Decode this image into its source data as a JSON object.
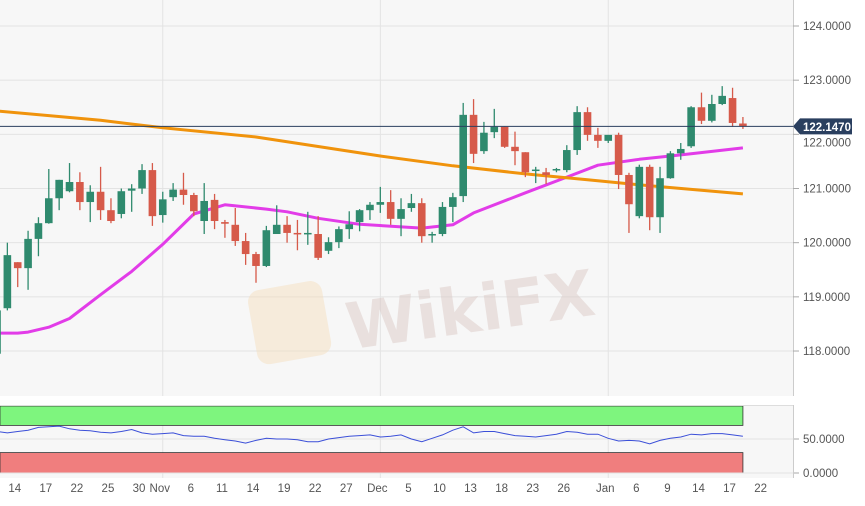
{
  "chart_data": {
    "type": "candlestick",
    "title": "",
    "watermark": "WikiFX",
    "colors": {
      "up": "#2f8a6e",
      "down": "#d65a4a",
      "ma_fast": "#e23ce8",
      "ma_slow": "#f0930c",
      "last_price": "#2a3f5f",
      "overbought_band": "#7ef57e",
      "oversold_band": "#f07e7e",
      "oscillator": "#3b4fd8"
    },
    "y_axis": {
      "range": [
        117.4,
        124.5
      ],
      "ticks": [
        "118.0000",
        "119.0000",
        "120.0000",
        "121.0000",
        "122.0000",
        "123.0000",
        "124.0000"
      ],
      "grid": true
    },
    "last_price": {
      "value": 122.147,
      "label": "122.1470"
    },
    "x_ticks": [
      {
        "date": "2019-10-14",
        "label": "14"
      },
      {
        "date": "2019-10-17",
        "label": "17"
      },
      {
        "date": "2019-10-22",
        "label": "22"
      },
      {
        "date": "2019-10-25",
        "label": "25"
      },
      {
        "date": "2019-10-30",
        "label": "30"
      },
      {
        "date": "2019-11-01",
        "label": "Nov",
        "month": true
      },
      {
        "date": "2019-11-06",
        "label": "6"
      },
      {
        "date": "2019-11-11",
        "label": "11"
      },
      {
        "date": "2019-11-14",
        "label": "14"
      },
      {
        "date": "2019-11-19",
        "label": "19"
      },
      {
        "date": "2019-11-22",
        "label": "22"
      },
      {
        "date": "2019-11-27",
        "label": "27"
      },
      {
        "date": "2019-12-02",
        "label": "Dec",
        "month": true
      },
      {
        "date": "2019-12-05",
        "label": "5"
      },
      {
        "date": "2019-12-10",
        "label": "10"
      },
      {
        "date": "2019-12-13",
        "label": "13"
      },
      {
        "date": "2019-12-18",
        "label": "18"
      },
      {
        "date": "2019-12-23",
        "label": "23"
      },
      {
        "date": "2019-12-26",
        "label": "26"
      },
      {
        "date": "2020-01-01",
        "label": "Jan",
        "month": true
      },
      {
        "date": "2020-01-06",
        "label": "6"
      },
      {
        "date": "2020-01-09",
        "label": "9"
      },
      {
        "date": "2020-01-14",
        "label": "14"
      },
      {
        "date": "2020-01-17",
        "label": "17"
      },
      {
        "date": "2020-01-22",
        "label": "22"
      }
    ],
    "candles_format": [
      "date",
      "open",
      "high",
      "low",
      "close"
    ],
    "candles": [
      [
        "2019-10-10",
        117.95,
        118.79,
        117.8,
        118.75
      ],
      [
        "2019-10-11",
        118.79,
        120.0,
        118.75,
        119.77
      ],
      [
        "2019-10-14",
        119.64,
        119.64,
        119.18,
        119.53
      ],
      [
        "2019-10-15",
        119.53,
        120.22,
        119.13,
        120.07
      ],
      [
        "2019-10-16",
        120.07,
        120.47,
        119.75,
        120.36
      ],
      [
        "2019-10-17",
        120.36,
        121.36,
        120.35,
        120.82
      ],
      [
        "2019-10-18",
        120.82,
        121.16,
        120.6,
        121.16
      ],
      [
        "2019-10-21",
        120.95,
        121.47,
        120.93,
        121.12
      ],
      [
        "2019-10-22",
        121.12,
        121.3,
        120.6,
        120.75
      ],
      [
        "2019-10-23",
        120.75,
        121.06,
        120.38,
        120.94
      ],
      [
        "2019-10-24",
        120.94,
        121.4,
        120.42,
        120.6
      ],
      [
        "2019-10-25",
        120.6,
        120.82,
        120.36,
        120.4
      ],
      [
        "2019-10-28",
        120.53,
        121.0,
        120.45,
        120.95
      ],
      [
        "2019-10-29",
        120.96,
        121.08,
        120.57,
        121.0
      ],
      [
        "2019-10-30",
        121.0,
        121.45,
        120.9,
        121.34
      ],
      [
        "2019-10-31",
        121.34,
        121.47,
        120.31,
        120.49
      ],
      [
        "2019-11-01",
        120.51,
        120.94,
        120.37,
        120.8
      ],
      [
        "2019-11-04",
        120.84,
        121.1,
        120.77,
        120.98
      ],
      [
        "2019-11-05",
        120.98,
        121.29,
        120.7,
        120.88
      ],
      [
        "2019-11-06",
        120.88,
        120.92,
        120.49,
        120.58
      ],
      [
        "2019-11-07",
        120.4,
        121.1,
        120.16,
        120.77
      ],
      [
        "2019-11-08",
        120.79,
        120.9,
        120.25,
        120.4
      ],
      [
        "2019-11-11",
        120.38,
        120.42,
        120.09,
        120.35
      ],
      [
        "2019-11-12",
        120.33,
        120.64,
        119.94,
        120.03
      ],
      [
        "2019-11-13",
        120.03,
        120.18,
        119.59,
        119.79
      ],
      [
        "2019-11-14",
        119.79,
        119.83,
        119.26,
        119.57
      ],
      [
        "2019-11-15",
        119.57,
        120.31,
        119.55,
        120.23
      ],
      [
        "2019-11-18",
        120.16,
        120.69,
        120.16,
        120.33
      ],
      [
        "2019-11-19",
        120.33,
        120.49,
        120.0,
        120.18
      ],
      [
        "2019-11-20",
        120.18,
        120.42,
        119.86,
        120.17
      ],
      [
        "2019-11-21",
        120.17,
        120.57,
        119.96,
        120.18
      ],
      [
        "2019-11-22",
        120.16,
        120.49,
        119.68,
        119.72
      ],
      [
        "2019-11-25",
        119.85,
        120.1,
        119.79,
        120.01
      ],
      [
        "2019-11-26",
        120.01,
        120.3,
        119.9,
        120.25
      ],
      [
        "2019-11-27",
        120.25,
        120.58,
        120.07,
        120.34
      ],
      [
        "2019-11-28",
        120.38,
        120.62,
        120.21,
        120.6
      ],
      [
        "2019-11-29",
        120.6,
        120.75,
        120.42,
        120.7
      ],
      [
        "2019-12-02",
        120.7,
        121.03,
        120.55,
        120.75
      ],
      [
        "2019-12-03",
        120.75,
        120.97,
        120.33,
        120.44
      ],
      [
        "2019-12-04",
        120.44,
        120.82,
        120.12,
        120.62
      ],
      [
        "2019-12-05",
        120.64,
        120.9,
        120.57,
        120.73
      ],
      [
        "2019-12-06",
        120.73,
        120.82,
        120.0,
        120.12
      ],
      [
        "2019-12-09",
        120.15,
        120.2,
        120.0,
        120.16
      ],
      [
        "2019-12-10",
        120.16,
        120.75,
        120.12,
        120.66
      ],
      [
        "2019-12-11",
        120.66,
        120.92,
        120.38,
        120.84
      ],
      [
        "2019-12-12",
        120.86,
        122.58,
        120.75,
        122.36
      ],
      [
        "2019-12-13",
        122.36,
        122.65,
        121.47,
        121.64
      ],
      [
        "2019-12-16",
        121.69,
        122.23,
        121.64,
        122.03
      ],
      [
        "2019-12-17",
        122.04,
        122.47,
        121.93,
        122.14
      ],
      [
        "2019-12-18",
        122.14,
        122.14,
        121.75,
        121.77
      ],
      [
        "2019-12-19",
        121.77,
        122.05,
        121.43,
        121.69
      ],
      [
        "2019-12-20",
        121.67,
        121.67,
        121.21,
        121.3
      ],
      [
        "2019-12-23",
        121.33,
        121.4,
        121.1,
        121.35
      ],
      [
        "2019-12-24",
        121.3,
        121.38,
        121.08,
        121.25
      ],
      [
        "2019-12-25",
        121.34,
        121.38,
        121.3,
        121.36
      ],
      [
        "2019-12-26",
        121.34,
        121.8,
        121.3,
        121.71
      ],
      [
        "2019-12-27",
        121.71,
        122.52,
        121.62,
        122.41
      ],
      [
        "2019-12-30",
        122.41,
        122.5,
        121.88,
        121.99
      ],
      [
        "2019-12-31",
        121.99,
        122.12,
        121.75,
        121.88
      ],
      [
        "2020-01-01",
        121.88,
        121.99,
        121.84,
        121.99
      ],
      [
        "2020-01-02",
        121.99,
        122.03,
        120.99,
        121.25
      ],
      [
        "2020-01-03",
        121.25,
        121.29,
        120.18,
        120.71
      ],
      [
        "2020-01-06",
        120.49,
        121.44,
        120.45,
        121.4
      ],
      [
        "2020-01-07",
        121.4,
        121.44,
        120.23,
        120.47
      ],
      [
        "2020-01-08",
        120.47,
        121.4,
        120.18,
        121.19
      ],
      [
        "2020-01-09",
        121.19,
        121.69,
        121.18,
        121.65
      ],
      [
        "2020-01-10",
        121.65,
        121.84,
        121.53,
        121.73
      ],
      [
        "2020-01-13",
        121.78,
        122.52,
        121.75,
        122.5
      ],
      [
        "2020-01-14",
        122.5,
        122.77,
        122.19,
        122.25
      ],
      [
        "2020-01-15",
        122.25,
        122.73,
        122.22,
        122.56
      ],
      [
        "2020-01-16",
        122.56,
        122.89,
        122.54,
        122.71
      ],
      [
        "2020-01-17",
        122.67,
        122.86,
        122.14,
        122.21
      ],
      [
        "2020-01-20",
        122.2,
        122.32,
        122.1,
        122.147
      ]
    ],
    "overlays": [
      {
        "color_key": "ma_fast",
        "points": [
          [
            "2019-10-10",
            118.33
          ],
          [
            "2019-10-14",
            118.33
          ],
          [
            "2019-10-15",
            118.35
          ],
          [
            "2019-10-17",
            118.44
          ],
          [
            "2019-10-21",
            118.6
          ],
          [
            "2019-10-24",
            119.04
          ],
          [
            "2019-10-29",
            119.47
          ],
          [
            "2019-11-01",
            119.97
          ],
          [
            "2019-11-06",
            120.53
          ],
          [
            "2019-11-11",
            120.7
          ],
          [
            "2019-11-15",
            120.62
          ],
          [
            "2019-11-19",
            120.57
          ],
          [
            "2019-11-22",
            120.45
          ],
          [
            "2019-11-28",
            120.34
          ],
          [
            "2019-12-06",
            120.27
          ],
          [
            "2019-12-11",
            120.33
          ],
          [
            "2019-12-13",
            120.55
          ],
          [
            "2019-12-20",
            120.92
          ],
          [
            "2019-12-26",
            121.21
          ],
          [
            "2019-12-31",
            121.43
          ],
          [
            "2020-01-06",
            121.54
          ],
          [
            "2020-01-09",
            121.6
          ],
          [
            "2020-01-13",
            121.64
          ],
          [
            "2020-01-20",
            121.75
          ]
        ]
      },
      {
        "color_key": "ma_slow",
        "points": [
          [
            "2019-10-10",
            122.43
          ],
          [
            "2019-10-24",
            122.26
          ],
          [
            "2019-11-01",
            122.12
          ],
          [
            "2019-11-14",
            121.95
          ],
          [
            "2019-12-02",
            121.6
          ],
          [
            "2019-12-11",
            121.42
          ],
          [
            "2019-12-20",
            121.27
          ],
          [
            "2019-12-30",
            121.16
          ],
          [
            "2020-01-07",
            121.05
          ],
          [
            "2020-01-20",
            120.9
          ]
        ]
      }
    ],
    "oscillator": {
      "range": [
        0,
        100
      ],
      "ticks": [
        "0.0000",
        "50.0000"
      ],
      "bands": [
        [
          70,
          100
        ],
        [
          0,
          30
        ]
      ],
      "values": [
        61,
        59,
        61,
        63,
        67,
        68,
        69,
        65,
        63,
        62,
        60,
        59,
        61,
        64,
        59,
        57,
        58,
        59,
        55,
        54,
        54,
        51,
        49,
        47,
        44,
        48,
        51,
        50,
        50,
        49,
        46,
        46,
        50,
        52,
        54,
        55,
        56,
        53,
        54,
        56,
        50,
        46,
        51,
        56,
        63,
        68,
        59,
        61,
        61,
        58,
        55,
        54,
        53,
        55,
        57,
        61,
        60,
        57,
        57,
        51,
        47,
        48,
        47,
        43,
        48,
        51,
        53,
        57,
        56,
        58,
        58,
        56,
        54
      ]
    }
  }
}
